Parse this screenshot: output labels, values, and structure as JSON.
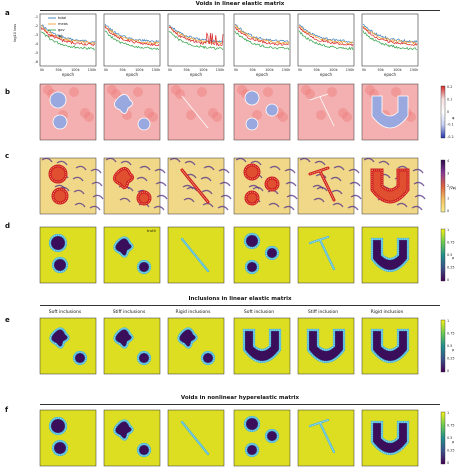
{
  "sections": {
    "voids_linear": "Voids in linear elastic matrix",
    "inclusions_linear": "Inclusions in linear elastic matrix",
    "voids_nonlinear": "Voids in nonlinear hyperelastic matrix"
  },
  "panel_labels": {
    "a": "a",
    "b": "b",
    "c": "c",
    "d": "d",
    "e": "e",
    "f": "f"
  },
  "panel_a": {
    "legend": [
      "total",
      "meas",
      "gov",
      "wk"
    ],
    "series_colors": [
      "#3a7fc0",
      "#f0a030",
      "#33a34a",
      "#d62728"
    ],
    "ylabel": "log10 loss",
    "xlabel": "epoch",
    "xticks": [
      "0k",
      "50k",
      "100k",
      "150k"
    ],
    "yticks": [
      "-1",
      "-2",
      "-3",
      "-4",
      "-5",
      "-6"
    ]
  },
  "panel_b": {
    "cbar_label": "φ",
    "cbar_ticks": [
      "0.2",
      "0.1",
      "0",
      "-0.1",
      "-0.2"
    ]
  },
  "panel_c": {
    "cbar_label": "|∇φ|",
    "cbar_ticks": [
      "4",
      "3",
      "2",
      "1",
      "0"
    ]
  },
  "panel_d": {
    "truth_label": "truth",
    "cbar_label": "ρ",
    "cbar_ticks": [
      "1",
      "0.75",
      "0.5",
      "0.25",
      "0"
    ]
  },
  "panel_e": {
    "column_labels": [
      "Soft inclusions",
      "Stiff inclusions",
      "Rigid inclusions",
      "Soft inclusion",
      "Stiff inclusion",
      "Rigid inclusion"
    ],
    "cbar_label": "ρ",
    "cbar_ticks": [
      "1",
      "0.75",
      "0.5",
      "0.25",
      "0"
    ]
  },
  "panel_f": {
    "cbar_label": "ρ",
    "cbar_ticks": [
      "1",
      "0.75",
      "0.5",
      "0.25",
      "0"
    ]
  },
  "shapes": [
    "two-circles",
    "three-lobes",
    "bar",
    "three-circles",
    "T-shape",
    "U-shape"
  ],
  "colors": {
    "field_bg": "#dddd22",
    "void": "#3a0e5a",
    "boundary": "#49b8d8",
    "phi_pos": "#d62728",
    "phi_neg": "#2233aa"
  }
}
